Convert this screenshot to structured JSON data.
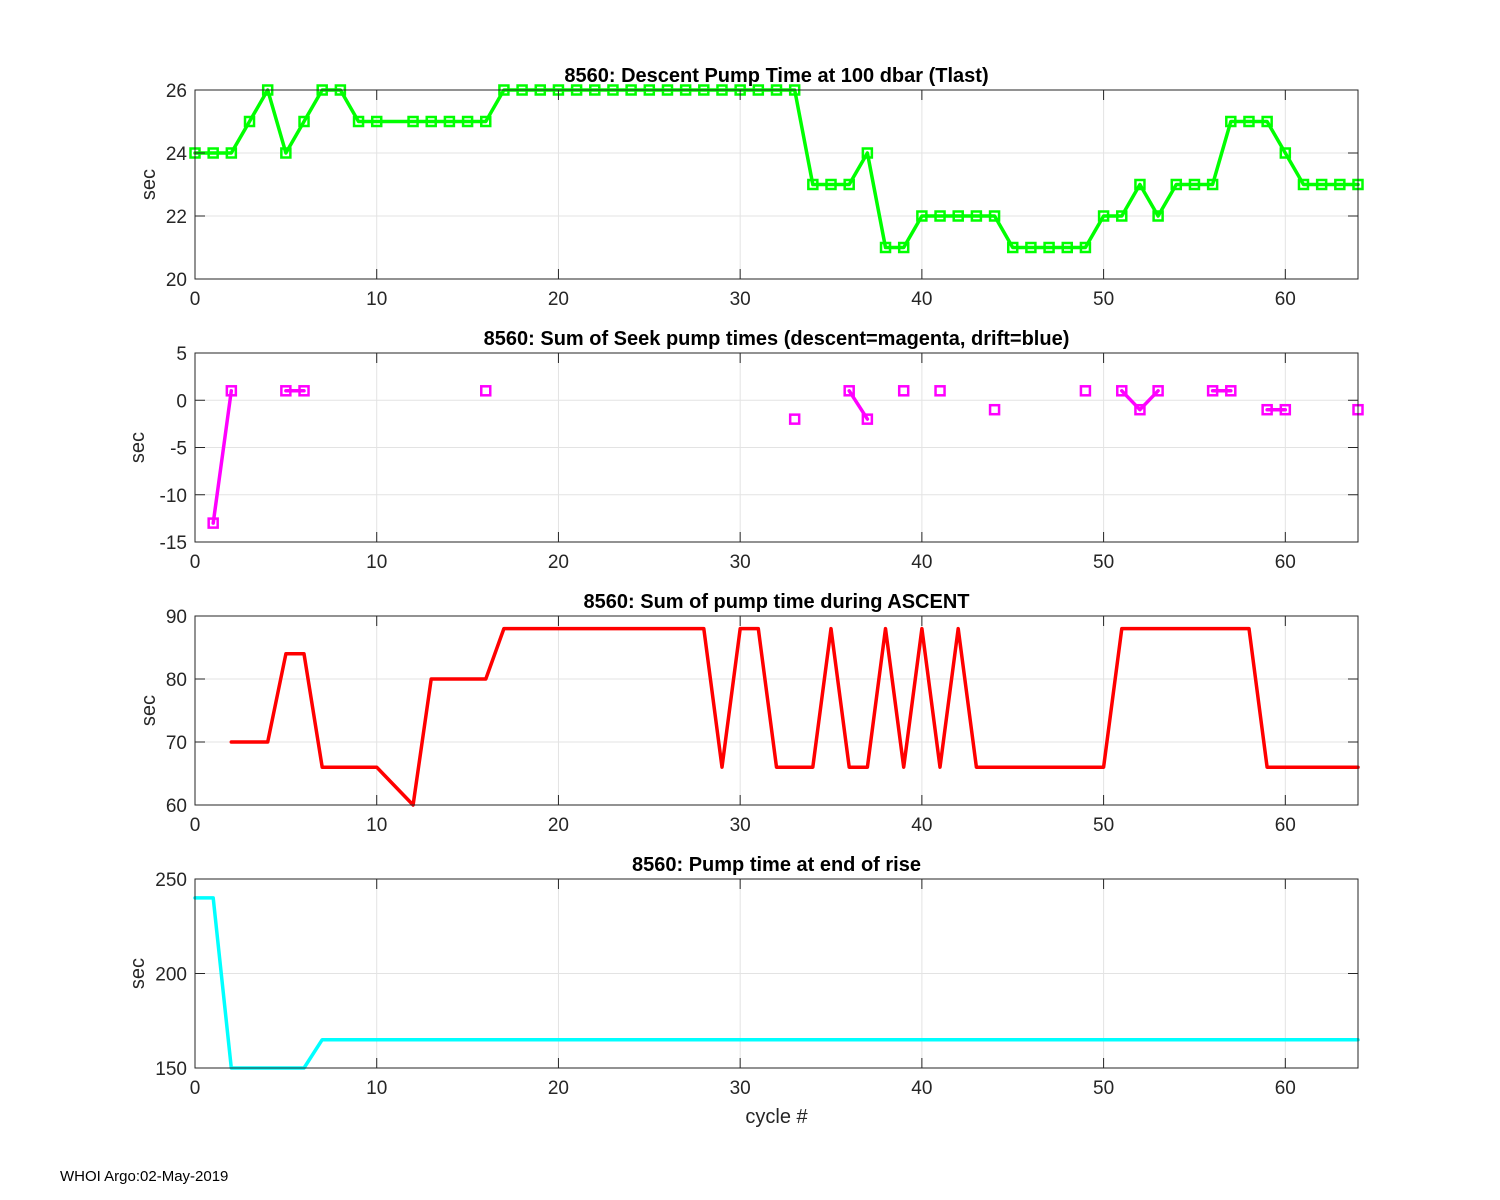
{
  "footer": "WHOI Argo:02-May-2019",
  "chart_data": [
    {
      "type": "line",
      "title": "8560: Descent Pump Time at 100 dbar (Tlast)",
      "ylabel": "sec",
      "xlabel": "",
      "xlim": [
        0,
        64
      ],
      "ylim": [
        20,
        26
      ],
      "xticks": [
        0,
        10,
        20,
        30,
        40,
        50,
        60
      ],
      "yticks": [
        20,
        22,
        24,
        26
      ],
      "grid": true,
      "series": [
        {
          "color": "#00ff00",
          "markers": true,
          "x": [
            0,
            1,
            2,
            3,
            4,
            5,
            6,
            7,
            8,
            9,
            10,
            12,
            13,
            14,
            15,
            16,
            17,
            18,
            19,
            20,
            21,
            22,
            23,
            24,
            25,
            26,
            27,
            28,
            29,
            30,
            31,
            32,
            33,
            34,
            35,
            36,
            37,
            38,
            39,
            40,
            41,
            42,
            43,
            44,
            45,
            46,
            47,
            48,
            49,
            50,
            51,
            52,
            53,
            54,
            55,
            56,
            57,
            58,
            59,
            60,
            61,
            62,
            63,
            64
          ],
          "y": [
            24,
            24,
            24,
            25,
            26,
            24,
            25,
            26,
            26,
            25,
            25,
            25,
            25,
            25,
            25,
            25,
            26,
            26,
            26,
            26,
            26,
            26,
            26,
            26,
            26,
            26,
            26,
            26,
            26,
            26,
            26,
            26,
            26,
            23,
            23,
            23,
            24,
            21,
            21,
            22,
            22,
            22,
            22,
            22,
            21,
            21,
            21,
            21,
            21,
            22,
            22,
            23,
            22,
            23,
            23,
            23,
            25,
            25,
            25,
            24,
            23,
            23,
            23,
            23
          ]
        }
      ]
    },
    {
      "type": "line",
      "title": "8560: Sum of Seek pump times (descent=magenta, drift=blue)",
      "ylabel": "sec",
      "xlabel": "",
      "xlim": [
        0,
        64
      ],
      "ylim": [
        -15,
        5
      ],
      "xticks": [
        0,
        10,
        20,
        30,
        40,
        50,
        60
      ],
      "yticks": [
        -15,
        -10,
        -5,
        0,
        5
      ],
      "grid": true,
      "series": [
        {
          "color": "#ff00ff",
          "markers": true,
          "segments": [
            {
              "x": [
                1,
                2
              ],
              "y": [
                -13,
                1
              ]
            },
            {
              "x": [
                5,
                6
              ],
              "y": [
                1,
                1
              ]
            },
            {
              "x": [
                16
              ],
              "y": [
                1
              ]
            },
            {
              "x": [
                33
              ],
              "y": [
                -2
              ]
            },
            {
              "x": [
                36,
                37
              ],
              "y": [
                1,
                -2
              ]
            },
            {
              "x": [
                39
              ],
              "y": [
                1
              ]
            },
            {
              "x": [
                41
              ],
              "y": [
                1
              ]
            },
            {
              "x": [
                44
              ],
              "y": [
                -1
              ]
            },
            {
              "x": [
                49
              ],
              "y": [
                1
              ]
            },
            {
              "x": [
                51,
                52,
                53
              ],
              "y": [
                1,
                -1,
                1
              ]
            },
            {
              "x": [
                56,
                57
              ],
              "y": [
                1,
                1
              ]
            },
            {
              "x": [
                59,
                60
              ],
              "y": [
                -1,
                -1
              ]
            },
            {
              "x": [
                64
              ],
              "y": [
                -1
              ]
            }
          ]
        }
      ]
    },
    {
      "type": "line",
      "title": "8560: Sum of pump time during ASCENT",
      "ylabel": "sec",
      "xlabel": "",
      "xlim": [
        0,
        64
      ],
      "ylim": [
        60,
        90
      ],
      "xticks": [
        0,
        10,
        20,
        30,
        40,
        50,
        60
      ],
      "yticks": [
        60,
        70,
        80,
        90
      ],
      "grid": true,
      "series": [
        {
          "color": "#ff0000",
          "markers": false,
          "x": [
            2,
            4,
            5,
            6,
            7,
            10,
            12,
            13,
            16,
            17,
            28,
            29,
            30,
            31,
            32,
            34,
            35,
            36,
            37,
            38,
            39,
            40,
            41,
            42,
            43,
            50,
            51,
            58,
            59,
            64
          ],
          "y": [
            70,
            70,
            84,
            84,
            66,
            66,
            60,
            80,
            80,
            88,
            88,
            66,
            88,
            88,
            66,
            66,
            88,
            66,
            66,
            88,
            66,
            88,
            66,
            88,
            66,
            66,
            88,
            88,
            66,
            66
          ]
        }
      ]
    },
    {
      "type": "line",
      "title": "8560: Pump time at end of rise",
      "ylabel": "sec",
      "xlabel": "cycle #",
      "xlim": [
        0,
        64
      ],
      "ylim": [
        150,
        250
      ],
      "xticks": [
        0,
        10,
        20,
        30,
        40,
        50,
        60
      ],
      "yticks": [
        150,
        200,
        250
      ],
      "grid": true,
      "series": [
        {
          "color": "#00ffff",
          "markers": false,
          "x": [
            0,
            1,
            2,
            6,
            7,
            64
          ],
          "y": [
            240,
            240,
            150,
            150,
            165,
            165
          ]
        }
      ]
    }
  ]
}
